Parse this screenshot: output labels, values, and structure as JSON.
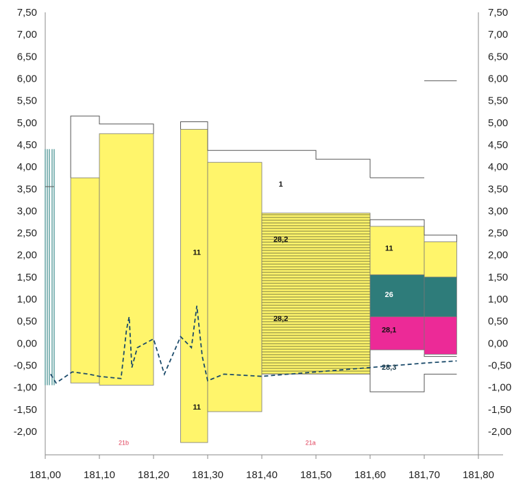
{
  "chart_data": {
    "type": "area",
    "title": "",
    "xlabel": "",
    "ylabel": "",
    "xlim": [
      181.0,
      181.8
    ],
    "ylim": [
      -2.5,
      7.5
    ],
    "x_ticks": [
      "181,00",
      "181,10",
      "181,20",
      "181,30",
      "181,40",
      "181,50",
      "181,60",
      "181,70",
      "181,80"
    ],
    "y_ticks": [
      "7,50",
      "7,00",
      "6,50",
      "6,00",
      "5,50",
      "5,00",
      "4,50",
      "4,00",
      "3,50",
      "3,00",
      "2,50",
      "2,00",
      "1,50",
      "1,00",
      "0,50",
      "0,00",
      "-0,50",
      "-1,00",
      "-1,50",
      "-2,00"
    ],
    "colors": {
      "yellow": "#fff56b",
      "stripe": "#e6d84a",
      "teal": "#2e7c7a",
      "magenta": "#ec2a97",
      "outline": "#555555",
      "dashed": "#1a4a6a",
      "local_label": "#e0405a"
    },
    "blocks": [
      {
        "name": "yellow-block-1",
        "x0": 181.047,
        "x1": 181.1,
        "y0": -0.9,
        "y1": 3.75,
        "fill": "yellow"
      },
      {
        "name": "yellow-block-2",
        "x0": 181.1,
        "x1": 181.2,
        "y0": -0.95,
        "y1": 4.75,
        "fill": "yellow"
      },
      {
        "name": "yellow-block-3",
        "x0": 181.25,
        "x1": 181.3,
        "y0": -2.25,
        "y1": 4.85,
        "fill": "yellow"
      },
      {
        "name": "yellow-block-4",
        "x0": 181.3,
        "x1": 181.4,
        "y0": -1.55,
        "y1": 4.1,
        "fill": "yellow"
      },
      {
        "name": "stripe-block",
        "x0": 181.4,
        "x1": 181.6,
        "y0": -0.7,
        "y1": 2.95,
        "fill": "stripe"
      },
      {
        "name": "yellow-block-5",
        "x0": 181.6,
        "x1": 181.7,
        "y0": 1.55,
        "y1": 2.65,
        "fill": "yellow"
      },
      {
        "name": "yellow-block-6",
        "x0": 181.7,
        "x1": 181.76,
        "y0": 1.5,
        "y1": 2.3,
        "fill": "yellow"
      },
      {
        "name": "teal-block-1",
        "x0": 181.6,
        "x1": 181.7,
        "y0": 0.6,
        "y1": 1.55,
        "fill": "teal"
      },
      {
        "name": "teal-block-2",
        "x0": 181.7,
        "x1": 181.76,
        "y0": 0.6,
        "y1": 1.5,
        "fill": "teal"
      },
      {
        "name": "magenta-block-1",
        "x0": 181.6,
        "x1": 181.7,
        "y0": -0.15,
        "y1": 0.6,
        "fill": "magenta"
      },
      {
        "name": "magenta-block-2",
        "x0": 181.7,
        "x1": 181.76,
        "y0": -0.25,
        "y1": 0.6,
        "fill": "magenta"
      }
    ],
    "outlines": [
      {
        "name": "outline-1",
        "points": [
          [
            181.047,
            3.75
          ],
          [
            181.047,
            5.15
          ],
          [
            181.1,
            5.15
          ],
          [
            181.1,
            4.97
          ],
          [
            181.2,
            4.97
          ],
          [
            181.2,
            4.75
          ]
        ]
      },
      {
        "name": "outline-2",
        "points": [
          [
            181.25,
            4.85
          ],
          [
            181.25,
            5.02
          ],
          [
            181.3,
            5.02
          ],
          [
            181.3,
            4.37
          ],
          [
            181.4,
            4.37
          ],
          [
            181.4,
            4.37
          ],
          [
            181.5,
            4.37
          ],
          [
            181.5,
            4.17
          ],
          [
            181.6,
            4.17
          ],
          [
            181.6,
            3.75
          ]
        ]
      },
      {
        "name": "outline-3",
        "points": [
          [
            181.6,
            2.65
          ],
          [
            181.6,
            2.8
          ],
          [
            181.7,
            2.8
          ],
          [
            181.7,
            2.45
          ],
          [
            181.76,
            2.45
          ],
          [
            181.76,
            2.3
          ]
        ]
      },
      {
        "name": "outline-4",
        "points": [
          [
            181.6,
            3.75
          ],
          [
            181.7,
            3.75
          ]
        ]
      },
      {
        "name": "outline-5",
        "points": [
          [
            181.7,
            5.95
          ],
          [
            181.76,
            5.95
          ]
        ]
      },
      {
        "name": "outline-6",
        "points": [
          [
            181.6,
            -0.15
          ],
          [
            181.6,
            -1.1
          ],
          [
            181.7,
            -1.1
          ],
          [
            181.7,
            -0.7
          ],
          [
            181.76,
            -0.7
          ]
        ]
      },
      {
        "name": "outline-7",
        "points": [
          [
            181.7,
            -0.25
          ],
          [
            181.7,
            -0.3
          ],
          [
            181.76,
            -0.3
          ]
        ]
      }
    ],
    "dashed_profile": [
      [
        181.01,
        -0.7
      ],
      [
        181.02,
        -0.9
      ],
      [
        181.05,
        -0.65
      ],
      [
        181.08,
        -0.7
      ],
      [
        181.1,
        -0.75
      ],
      [
        181.14,
        -0.8
      ],
      [
        181.15,
        0.3
      ],
      [
        181.155,
        0.6
      ],
      [
        181.16,
        -0.55
      ],
      [
        181.17,
        -0.1
      ],
      [
        181.2,
        0.1
      ],
      [
        181.22,
        -0.7
      ],
      [
        181.25,
        0.15
      ],
      [
        181.27,
        -0.1
      ],
      [
        181.28,
        0.85
      ],
      [
        181.29,
        -0.3
      ],
      [
        181.3,
        -0.85
      ],
      [
        181.33,
        -0.7
      ],
      [
        181.4,
        -0.75
      ],
      [
        181.5,
        -0.65
      ],
      [
        181.6,
        -0.55
      ],
      [
        181.7,
        -0.45
      ],
      [
        181.76,
        -0.4
      ]
    ],
    "region_labels": [
      {
        "text": "1",
        "x": 181.435,
        "y": 3.55
      },
      {
        "text": "11",
        "x": 181.28,
        "y": 2.0
      },
      {
        "text": "28,2",
        "x": 181.435,
        "y": 2.3
      },
      {
        "text": "28,2",
        "x": 181.435,
        "y": 0.5
      },
      {
        "text": "11",
        "x": 181.635,
        "y": 2.1
      },
      {
        "text": "26",
        "x": 181.635,
        "y": 1.05
      },
      {
        "text": "28,1",
        "x": 181.635,
        "y": 0.25
      },
      {
        "text": "28,3",
        "x": 181.635,
        "y": -0.6
      },
      {
        "text": "11",
        "x": 181.28,
        "y": -1.5
      }
    ],
    "local_labels": [
      {
        "text": "21b",
        "x": 181.145,
        "y": -2.3
      },
      {
        "text": "21a",
        "x": 181.49,
        "y": -2.3
      }
    ]
  }
}
